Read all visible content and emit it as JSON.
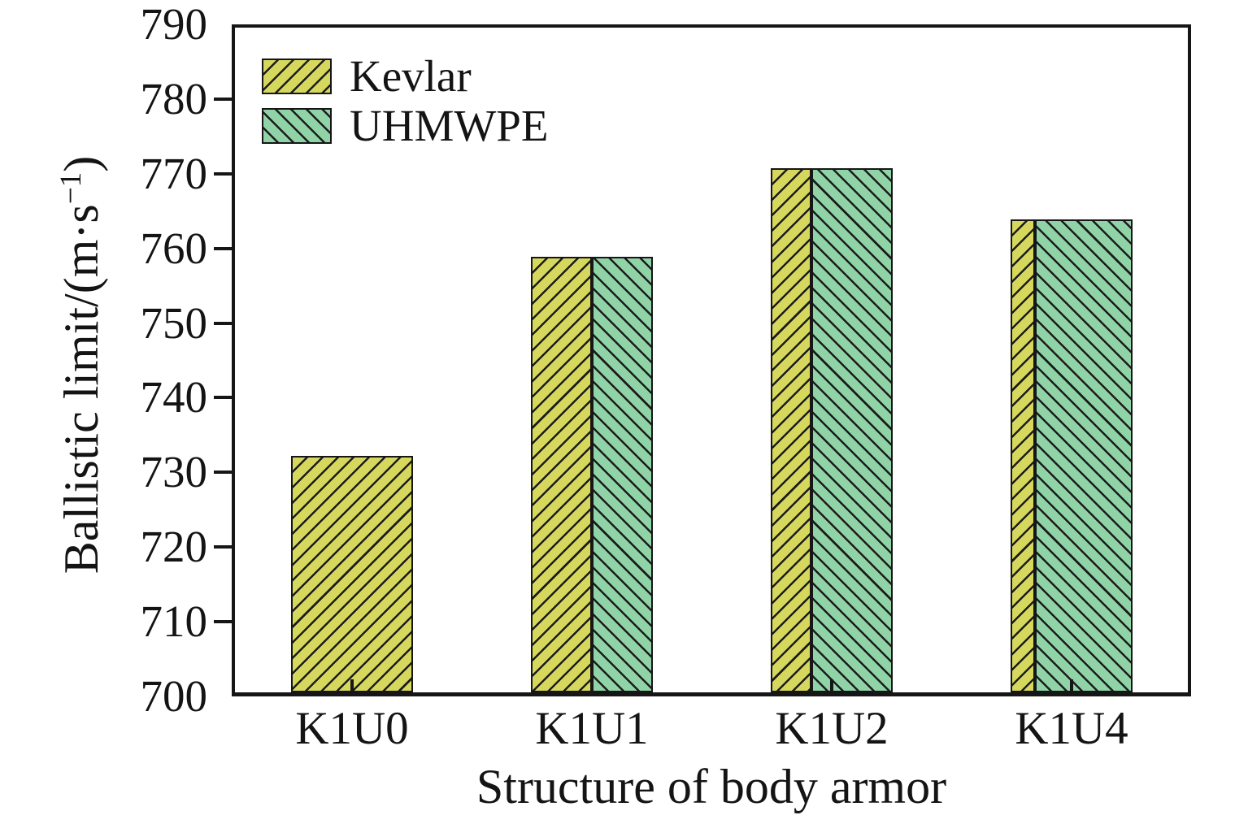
{
  "figure": {
    "background": "#ffffff",
    "axis_color": "#161616"
  },
  "chart_data": {
    "type": "bar",
    "title": "",
    "xlabel": "Structure of body armor",
    "ylabel": "Ballistic limit/(m·s−1)",
    "ylabel_parts": {
      "main": "Ballistic limit/(m·s",
      "sup": "−1",
      "close": ")"
    },
    "categories": [
      "K1U0",
      "K1U1",
      "K1U2",
      "K1U4"
    ],
    "series": [
      {
        "name": "Kevlar",
        "color": "#d6d85e",
        "hatch": "/",
        "values": [
          732,
          759,
          771,
          764
        ]
      },
      {
        "name": "UHMWPE",
        "color": "#8fd3a7",
        "hatch": "\\",
        "values": [
          null,
          759,
          771,
          764
        ]
      }
    ],
    "bar_composition_ratio": [
      [
        1,
        0
      ],
      [
        1,
        1
      ],
      [
        1,
        2
      ],
      [
        1,
        4
      ]
    ],
    "ylim": [
      700,
      790
    ],
    "ytick_step": 10,
    "yticks": [
      700,
      710,
      720,
      730,
      740,
      750,
      760,
      770,
      780,
      790
    ],
    "grid": false,
    "legend_position": "upper-left",
    "hatch_line_color": "#1c1c1c"
  }
}
